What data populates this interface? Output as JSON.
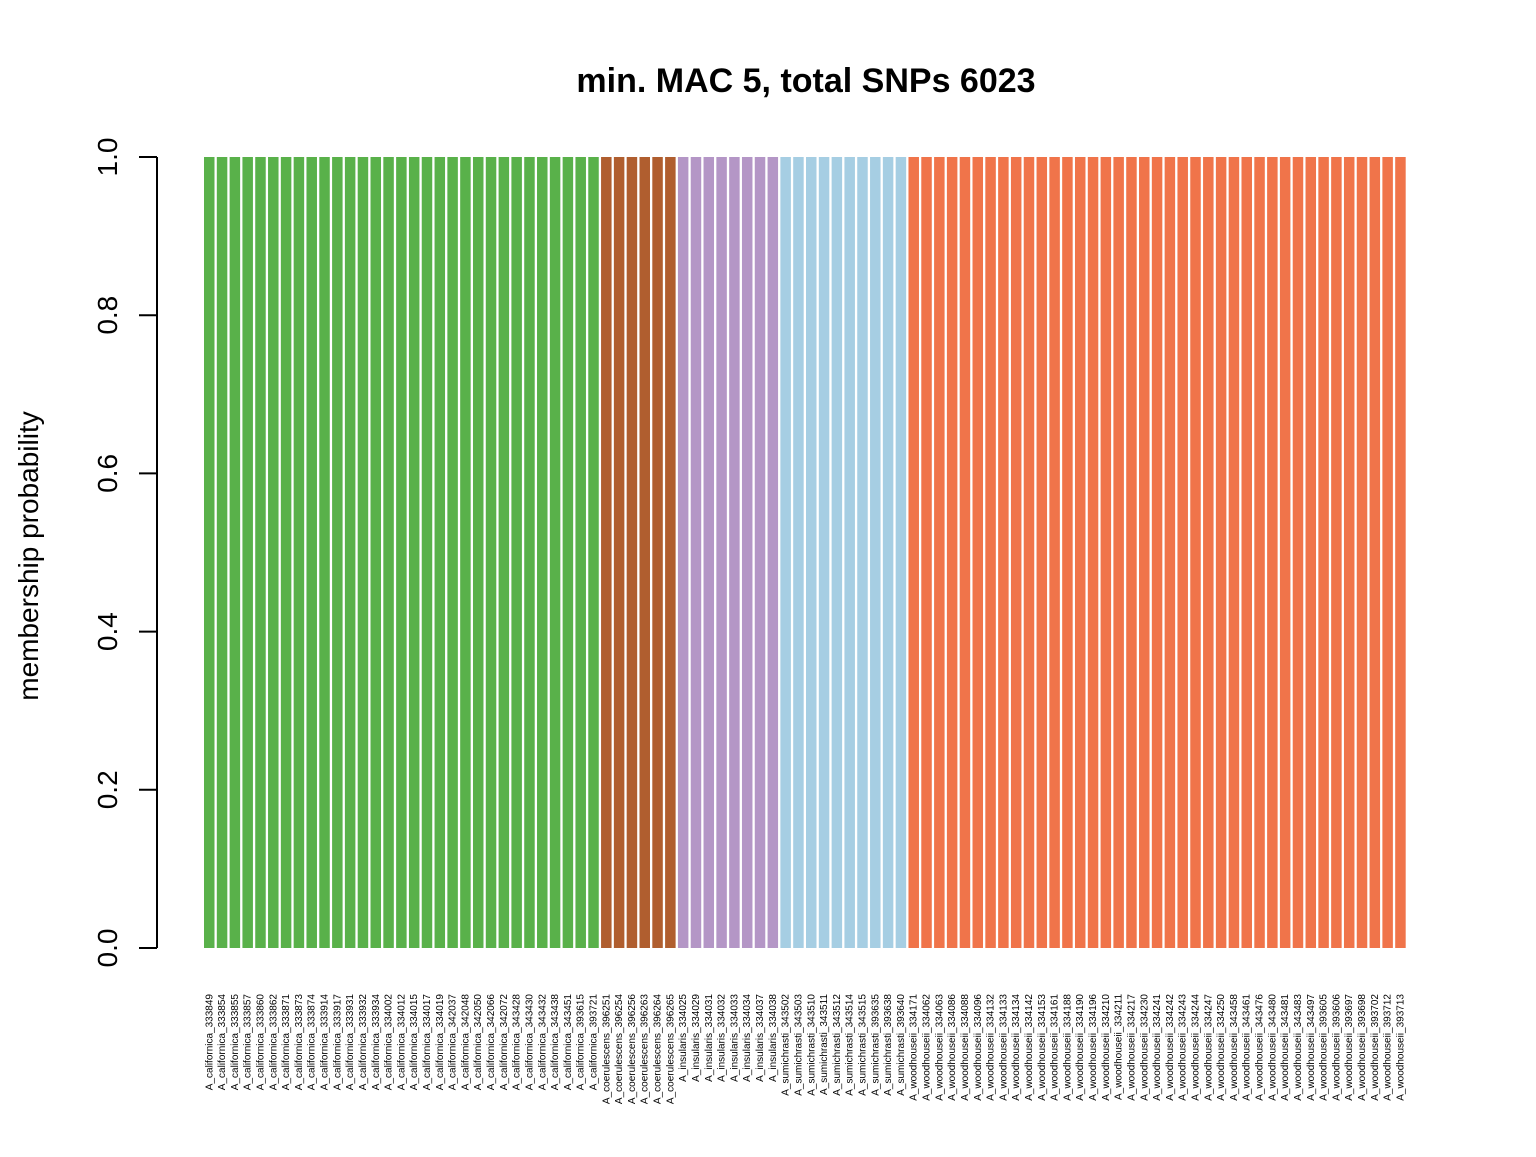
{
  "chart_data": {
    "type": "bar",
    "title": "min. MAC 5, total SNPs 6023",
    "xlabel": "",
    "ylabel": "membership probability",
    "ylim": [
      0,
      1
    ],
    "yticks": [
      "0.0",
      "0.2",
      "0.4",
      "0.6",
      "0.8",
      "1.0"
    ],
    "ytick_values": [
      0,
      0.2,
      0.4,
      0.6,
      0.8,
      1.0
    ],
    "stacked": true,
    "grid": false,
    "legend": "none",
    "colors": {
      "A_californica": "#59b14a",
      "A_coerulescens": "#b05e2f",
      "A_insularis": "#b496c6",
      "A_sumichrasti": "#a6cee3",
      "A_woodhouseii": "#f0744a"
    },
    "categories": [
      "A_californica_333849",
      "A_californica_333854",
      "A_californica_333855",
      "A_californica_333857",
      "A_californica_333860",
      "A_californica_333862",
      "A_californica_333871",
      "A_californica_333873",
      "A_californica_333874",
      "A_californica_333914",
      "A_californica_333917",
      "A_californica_333931",
      "A_californica_333932",
      "A_californica_333934",
      "A_californica_334002",
      "A_californica_334012",
      "A_californica_334015",
      "A_californica_334017",
      "A_californica_334019",
      "A_californica_342037",
      "A_californica_342048",
      "A_californica_342050",
      "A_californica_342066",
      "A_californica_342072",
      "A_californica_343428",
      "A_californica_343430",
      "A_californica_343432",
      "A_californica_343438",
      "A_californica_343451",
      "A_californica_393615",
      "A_californica_393721",
      "A_coerulescens_396251",
      "A_coerulescens_396254",
      "A_coerulescens_396256",
      "A_coerulescens_396263",
      "A_coerulescens_396264",
      "A_coerulescens_396265",
      "A_insularis_334025",
      "A_insularis_334029",
      "A_insularis_334031",
      "A_insularis_334032",
      "A_insularis_334033",
      "A_insularis_334034",
      "A_insularis_334037",
      "A_insularis_334038",
      "A_sumichrasti_343502",
      "A_sumichrasti_343503",
      "A_sumichrasti_343510",
      "A_sumichrasti_343511",
      "A_sumichrasti_343512",
      "A_sumichrasti_343514",
      "A_sumichrasti_343515",
      "A_sumichrasti_393635",
      "A_sumichrasti_393638",
      "A_sumichrasti_393640",
      "A_woodhouseii_334171",
      "A_woodhouseii_334062",
      "A_woodhouseii_334063",
      "A_woodhouseii_334086",
      "A_woodhouseii_334088",
      "A_woodhouseii_334096",
      "A_woodhouseii_334132",
      "A_woodhouseii_334133",
      "A_woodhouseii_334134",
      "A_woodhouseii_334142",
      "A_woodhouseii_334153",
      "A_woodhouseii_334161",
      "A_woodhouseii_334188",
      "A_woodhouseii_334190",
      "A_woodhouseii_334196",
      "A_woodhouseii_334210",
      "A_woodhouseii_334211",
      "A_woodhouseii_334217",
      "A_woodhouseii_334230",
      "A_woodhouseii_334241",
      "A_woodhouseii_334242",
      "A_woodhouseii_334243",
      "A_woodhouseii_334244",
      "A_woodhouseii_334247",
      "A_woodhouseii_334250",
      "A_woodhouseii_343458",
      "A_woodhouseii_343461",
      "A_woodhouseii_343476",
      "A_woodhouseii_343480",
      "A_woodhouseii_343481",
      "A_woodhouseii_343483",
      "A_woodhouseii_343497",
      "A_woodhouseii_393605",
      "A_woodhouseii_393606",
      "A_woodhouseii_393697",
      "A_woodhouseii_393698",
      "A_woodhouseii_393702",
      "A_woodhouseii_393712",
      "A_woodhouseii_393713"
    ],
    "groups": [
      {
        "cluster": "A_californica",
        "count": 31,
        "value": 1.0
      },
      {
        "cluster": "A_coerulescens",
        "count": 6,
        "value": 1.0
      },
      {
        "cluster": "A_insularis",
        "count": 8,
        "value": 1.0
      },
      {
        "cluster": "A_sumichrasti",
        "count": 10,
        "value": 1.0
      },
      {
        "cluster": "A_woodhouseii",
        "count": 39,
        "value": 1.0
      }
    ]
  }
}
